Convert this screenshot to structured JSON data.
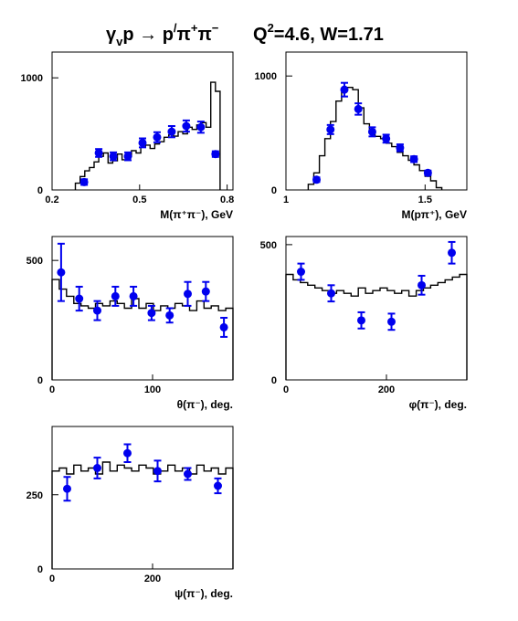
{
  "title": {
    "reaction": "γ",
    "reaction_sub": "v",
    "reaction_rest": "p → p",
    "prime": "/",
    "pions": "π",
    "pi_plus": "+",
    "pi_minus_base": "π",
    "pi_minus": "−",
    "q2_label": "Q",
    "q2_exp": "2",
    "q2_value": "=4.6, W=1.71"
  },
  "colors": {
    "data_points": "#0000ee",
    "histogram": "#000000",
    "frame": "#000000"
  },
  "chart_data": [
    {
      "type": "scatter",
      "xlabel": "M(π⁺π⁻), GeV",
      "xlim": [
        0.2,
        0.82
      ],
      "ylim": [
        0,
        1230
      ],
      "xticks": [
        0.2,
        0.5,
        0.8
      ],
      "xtick_labels": [
        "0.2",
        "0.5",
        "0.8"
      ],
      "yticks": [
        0,
        1000
      ],
      "ytick_labels": [
        "0",
        "1000"
      ],
      "series": [
        {
          "kind": "histogram",
          "edges": [
            0.28,
            0.296,
            0.312,
            0.328,
            0.344,
            0.36,
            0.376,
            0.392,
            0.408,
            0.424,
            0.44,
            0.456,
            0.472,
            0.488,
            0.504,
            0.52,
            0.536,
            0.552,
            0.568,
            0.584,
            0.6,
            0.616,
            0.632,
            0.648,
            0.664,
            0.68,
            0.696,
            0.712,
            0.728,
            0.744,
            0.76,
            0.776
          ],
          "values": [
            60,
            120,
            170,
            200,
            250,
            300,
            330,
            240,
            260,
            320,
            270,
            300,
            350,
            330,
            380,
            400,
            370,
            410,
            430,
            470,
            490,
            480,
            520,
            500,
            560,
            540,
            580,
            600,
            560,
            960,
            880
          ]
        },
        {
          "kind": "points",
          "x": [
            0.31,
            0.36,
            0.41,
            0.46,
            0.51,
            0.56,
            0.61,
            0.66,
            0.71,
            0.76
          ],
          "y": [
            70,
            330,
            300,
            300,
            420,
            470,
            520,
            570,
            560,
            320
          ],
          "err": [
            25,
            35,
            35,
            35,
            40,
            45,
            50,
            50,
            50,
            25
          ]
        }
      ]
    },
    {
      "type": "scatter",
      "xlabel": "M(pπ⁺), GeV",
      "xlim": [
        1.0,
        1.65
      ],
      "ylim": [
        0,
        1210
      ],
      "xticks": [
        1,
        1.5
      ],
      "xtick_labels": [
        "1",
        "1.5"
      ],
      "yticks": [
        0,
        1000
      ],
      "ytick_labels": [
        "0",
        "1000"
      ],
      "series": [
        {
          "kind": "histogram",
          "edges": [
            1.08,
            1.1,
            1.12,
            1.14,
            1.16,
            1.18,
            1.2,
            1.22,
            1.24,
            1.26,
            1.28,
            1.3,
            1.32,
            1.34,
            1.36,
            1.38,
            1.4,
            1.42,
            1.44,
            1.46,
            1.48,
            1.5,
            1.52,
            1.54,
            1.56
          ],
          "values": [
            50,
            150,
            300,
            450,
            600,
            780,
            880,
            900,
            880,
            720,
            580,
            520,
            470,
            450,
            410,
            380,
            330,
            300,
            260,
            220,
            170,
            120,
            80,
            20
          ]
        },
        {
          "kind": "points",
          "x": [
            1.11,
            1.16,
            1.21,
            1.26,
            1.31,
            1.36,
            1.41,
            1.46,
            1.51
          ],
          "y": [
            90,
            530,
            880,
            710,
            510,
            450,
            370,
            270,
            150
          ],
          "err": [
            20,
            40,
            60,
            50,
            40,
            35,
            30,
            25,
            20
          ]
        }
      ]
    },
    {
      "type": "scatter",
      "xlabel": "θ(π⁻), deg.",
      "xlim": [
        0,
        180
      ],
      "ylim": [
        0,
        600
      ],
      "xticks": [
        0,
        100
      ],
      "xtick_labels": [
        "0",
        "100"
      ],
      "yticks": [
        0,
        500
      ],
      "ytick_labels": [
        "0",
        "500"
      ],
      "series": [
        {
          "kind": "histogram",
          "edges": [
            0,
            7.2,
            14.4,
            21.6,
            28.8,
            36,
            43.2,
            50.4,
            57.6,
            64.8,
            72,
            79.2,
            86.4,
            93.6,
            100.8,
            108,
            115.2,
            122.4,
            129.6,
            136.8,
            144,
            151.2,
            158.4,
            165.6,
            172.8,
            180
          ],
          "values": [
            420,
            380,
            350,
            320,
            310,
            300,
            320,
            310,
            330,
            320,
            300,
            340,
            300,
            320,
            290,
            310,
            300,
            320,
            310,
            290,
            330,
            300,
            310,
            290,
            300
          ]
        },
        {
          "kind": "points",
          "x": [
            9,
            27,
            45,
            63,
            81,
            99,
            117,
            135,
            153,
            171
          ],
          "y": [
            450,
            340,
            290,
            350,
            350,
            280,
            270,
            360,
            370,
            220
          ],
          "err": [
            120,
            50,
            40,
            40,
            40,
            30,
            30,
            50,
            40,
            40
          ]
        }
      ]
    },
    {
      "type": "scatter",
      "xlabel": "φ(π⁻), deg.",
      "xlim": [
        0,
        360
      ],
      "ylim": [
        0,
        530
      ],
      "xticks": [
        0,
        200
      ],
      "xtick_labels": [
        "0",
        "200"
      ],
      "yticks": [
        0,
        500
      ],
      "ytick_labels": [
        "0",
        "500"
      ],
      "series": [
        {
          "kind": "histogram",
          "edges": [
            0,
            14.4,
            28.8,
            43.2,
            57.6,
            72,
            86.4,
            100.8,
            115.2,
            129.6,
            144,
            158.4,
            172.8,
            187.2,
            201.6,
            216,
            230.4,
            244.8,
            259.2,
            273.6,
            288,
            302.4,
            316.8,
            331.2,
            345.6,
            360
          ],
          "values": [
            390,
            370,
            360,
            350,
            340,
            330,
            320,
            330,
            320,
            310,
            340,
            320,
            330,
            340,
            330,
            320,
            330,
            310,
            330,
            340,
            350,
            360,
            370,
            380,
            390
          ]
        },
        {
          "kind": "points",
          "x": [
            30,
            90,
            150,
            210,
            270,
            330
          ],
          "y": [
            400,
            320,
            220,
            215,
            350,
            470
          ],
          "err": [
            30,
            30,
            30,
            30,
            35,
            40
          ]
        }
      ]
    },
    {
      "type": "scatter",
      "xlabel": "ψ(π⁻), deg.",
      "xlim": [
        0,
        360
      ],
      "ylim": [
        0,
        480
      ],
      "xticks": [
        0,
        200
      ],
      "xtick_labels": [
        "0",
        "200"
      ],
      "yticks": [
        0,
        250
      ],
      "ytick_labels": [
        "0",
        "250"
      ],
      "series": [
        {
          "kind": "histogram",
          "edges": [
            0,
            14.4,
            28.8,
            43.2,
            57.6,
            72,
            86.4,
            100.8,
            115.2,
            129.6,
            144,
            158.4,
            172.8,
            187.2,
            201.6,
            216,
            230.4,
            244.8,
            259.2,
            273.6,
            288,
            302.4,
            316.8,
            331.2,
            345.6,
            360
          ],
          "values": [
            330,
            340,
            320,
            350,
            330,
            340,
            320,
            360,
            330,
            350,
            340,
            330,
            350,
            340,
            320,
            330,
            350,
            330,
            340,
            320,
            350,
            330,
            340,
            320,
            340
          ]
        },
        {
          "kind": "points",
          "x": [
            30,
            90,
            150,
            210,
            270,
            330
          ],
          "y": [
            270,
            340,
            390,
            330,
            320,
            280
          ],
          "err": [
            40,
            35,
            30,
            35,
            20,
            25
          ]
        }
      ]
    }
  ]
}
